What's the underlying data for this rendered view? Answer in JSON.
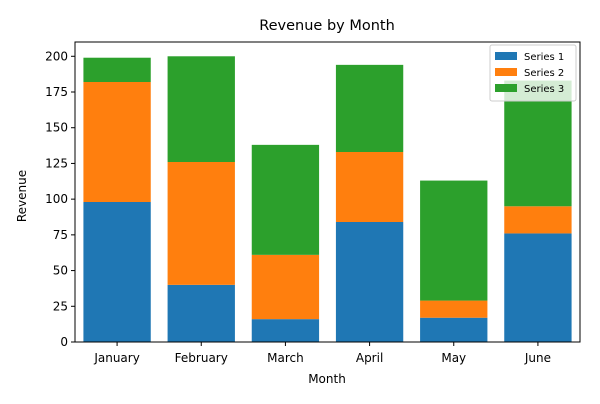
{
  "chart_data": {
    "type": "bar",
    "stacked": true,
    "title": "Revenue by Month",
    "xlabel": "Month",
    "ylabel": "Revenue",
    "ylim": [
      0,
      210
    ],
    "yticks": [
      0,
      25,
      50,
      75,
      100,
      125,
      150,
      175,
      200
    ],
    "categories": [
      "January",
      "February",
      "March",
      "April",
      "May",
      "June"
    ],
    "series": [
      {
        "name": "Series 1",
        "color": "#1f77b4",
        "values": [
          98,
          40,
          16,
          84,
          17,
          76
        ]
      },
      {
        "name": "Series 2",
        "color": "#ff7f0e",
        "values": [
          84,
          86,
          45,
          49,
          12,
          19
        ]
      },
      {
        "name": "Series 3",
        "color": "#2ca02c",
        "values": [
          17,
          74,
          77,
          61,
          84,
          88
        ]
      }
    ],
    "legend": "top-right",
    "grid": false
  }
}
